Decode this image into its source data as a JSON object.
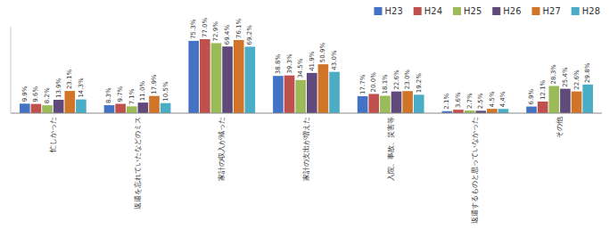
{
  "chart_data": {
    "type": "bar",
    "categories": [
      "忙しかった",
      "返還を忘れていたなどのミス",
      "家計の収入が減った",
      "家計の支出が増えた",
      "入院、事故、災害等",
      "返還するものと思っていなかった",
      "その他"
    ],
    "series": [
      {
        "name": "H23",
        "color": "#4472C4",
        "values": [
          9.9,
          8.3,
          75.3,
          38.8,
          17.7,
          2.1,
          6.9
        ],
        "value_labels": [
          "9.9%",
          "8.3%",
          "75.3%",
          "38.8%",
          "17.7%",
          "2.1%",
          "6.9%"
        ]
      },
      {
        "name": "H24",
        "color": "#C0504D",
        "values": [
          9.6,
          9.7,
          77.0,
          39.3,
          20.0,
          3.6,
          12.1
        ],
        "value_labels": [
          "9.6%",
          "9.7%",
          "77.0%",
          "39.3%",
          "20.0%",
          "3.6%",
          "12.1%"
        ]
      },
      {
        "name": "H25",
        "color": "#9BBB59",
        "values": [
          8.2,
          7.1,
          72.9,
          34.5,
          18.1,
          2.7,
          28.3
        ],
        "value_labels": [
          "8.2%",
          "7.1%",
          "72.9%",
          "34.5%",
          "18.1%",
          "2.7%",
          "28.3%"
        ]
      },
      {
        "name": "H26",
        "color": "#604A7B",
        "values": [
          13.9,
          11.0,
          69.4,
          41.9,
          22.6,
          2.5,
          25.4
        ],
        "value_labels": [
          "13.9%",
          "11.0%",
          "69.4%",
          "41.9%",
          "22.6%",
          "2.5%",
          "25.4%"
        ]
      },
      {
        "name": "H27",
        "color": "#D07428",
        "values": [
          23.1,
          17.9,
          76.1,
          50.9,
          23.0,
          4.5,
          22.6
        ],
        "value_labels": [
          "23.1%",
          "17.9%",
          "76.1%",
          "50.9%",
          "23.0%",
          "4.5%",
          "22.6%"
        ]
      },
      {
        "name": "H28",
        "color": "#4BACC6",
        "values": [
          14.3,
          10.5,
          69.2,
          43.0,
          19.2,
          4.4,
          29.8
        ],
        "value_labels": [
          "14.3%",
          "10.5%",
          "69.2%",
          "43.0%",
          "19.2%",
          "4.4%",
          "29.8%"
        ]
      }
    ],
    "ylim": [
      0,
      90
    ],
    "grid": false,
    "legend": "upper right",
    "data_labels": true,
    "tick_labels": "x"
  }
}
